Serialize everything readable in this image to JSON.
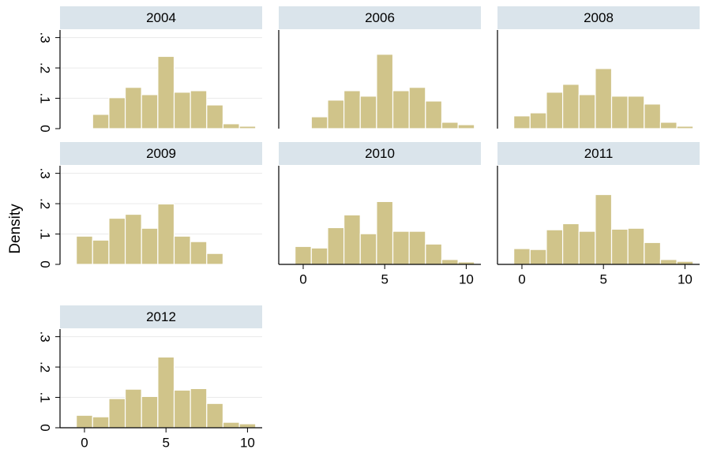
{
  "ylabel": "Density",
  "chart_data": [
    {
      "type": "histogram",
      "title": "2004",
      "bins": [
        -0.5,
        0.5,
        1.5,
        2.5,
        3.5,
        4.5,
        5.5,
        6.5,
        7.5,
        8.5,
        9.5,
        10.5
      ],
      "values": [
        0,
        0.047,
        0.102,
        0.136,
        0.112,
        0.238,
        0.12,
        0.125,
        0.078,
        0.016,
        0.008
      ],
      "color": "#d0c48a",
      "xlim": [
        -1.5,
        10.9
      ],
      "ylim": [
        0,
        0.325
      ],
      "yticks": [
        0,
        {
          "value": 0.1,
          "label": ".1"
        },
        {
          "value": 0.2,
          "label": ".2"
        },
        {
          "value": 0.3,
          "label": ".3"
        }
      ],
      "grid": true
    },
    {
      "type": "histogram",
      "title": "2006",
      "bins": [
        -0.5,
        0.5,
        1.5,
        2.5,
        3.5,
        4.5,
        5.5,
        6.5,
        7.5,
        8.5,
        9.5,
        10.5
      ],
      "values": [
        0,
        0.039,
        0.094,
        0.125,
        0.107,
        0.245,
        0.125,
        0.136,
        0.091,
        0.021,
        0.013
      ],
      "color": "#d0c48a",
      "xlim": [
        -1.5,
        10.9
      ],
      "ylim": [
        0,
        0.325
      ],
      "grid": true
    },
    {
      "type": "histogram",
      "title": "2008",
      "bins": [
        -0.5,
        0.5,
        1.5,
        2.5,
        3.5,
        4.5,
        5.5,
        6.5,
        7.5,
        8.5,
        9.5,
        10.5
      ],
      "values": [
        0.042,
        0.052,
        0.12,
        0.146,
        0.112,
        0.198,
        0.107,
        0.107,
        0.081,
        0.021,
        0.008
      ],
      "color": "#d0c48a",
      "xlim": [
        -1.5,
        10.9
      ],
      "ylim": [
        0,
        0.325
      ],
      "grid": true
    },
    {
      "type": "histogram",
      "title": "2009",
      "bins": [
        -0.5,
        0.5,
        1.5,
        2.5,
        3.5,
        4.5,
        5.5,
        6.5,
        7.5,
        8.5,
        9.5,
        10.5
      ],
      "values": [
        0.093,
        0.08,
        0.152,
        0.165,
        0.119,
        0.199,
        0.093,
        0.075,
        0.036,
        0.002,
        0.002
      ],
      "color": "#d0c48a",
      "xlim": [
        -1.5,
        10.9
      ],
      "ylim": [
        0,
        0.325
      ],
      "yticks": [
        0,
        {
          "value": 0.1,
          "label": ".1"
        },
        {
          "value": 0.2,
          "label": ".2"
        },
        {
          "value": 0.3,
          "label": ".3"
        }
      ],
      "grid": true
    },
    {
      "type": "histogram",
      "title": "2010",
      "bins": [
        -0.5,
        0.5,
        1.5,
        2.5,
        3.5,
        4.5,
        5.5,
        6.5,
        7.5,
        8.5,
        9.5,
        10.5
      ],
      "values": [
        0.059,
        0.054,
        0.121,
        0.163,
        0.101,
        0.207,
        0.109,
        0.109,
        0.067,
        0.016,
        0.008
      ],
      "color": "#d0c48a",
      "xlim": [
        -1.5,
        10.9
      ],
      "ylim": [
        0,
        0.325
      ],
      "xticks": [
        0,
        5,
        10
      ],
      "grid": true
    },
    {
      "type": "histogram",
      "title": "2011",
      "bins": [
        -0.5,
        0.5,
        1.5,
        2.5,
        3.5,
        4.5,
        5.5,
        6.5,
        7.5,
        8.5,
        9.5,
        10.5
      ],
      "values": [
        0.052,
        0.049,
        0.114,
        0.134,
        0.109,
        0.23,
        0.116,
        0.119,
        0.072,
        0.016,
        0.01
      ],
      "color": "#d0c48a",
      "xlim": [
        -1.5,
        10.9
      ],
      "ylim": [
        0,
        0.325
      ],
      "xticks": [
        0,
        5,
        10
      ],
      "grid": true
    },
    {
      "type": "histogram",
      "title": "2012",
      "bins": [
        -0.5,
        0.5,
        1.5,
        2.5,
        3.5,
        4.5,
        5.5,
        6.5,
        7.5,
        8.5,
        9.5,
        10.5
      ],
      "values": [
        0.041,
        0.036,
        0.096,
        0.127,
        0.103,
        0.233,
        0.124,
        0.129,
        0.08,
        0.018,
        0.013
      ],
      "color": "#d0c48a",
      "xlim": [
        -1.5,
        10.9
      ],
      "ylim": [
        0,
        0.325
      ],
      "yticks": [
        0,
        {
          "value": 0.1,
          "label": ".1"
        },
        {
          "value": 0.2,
          "label": ".2"
        },
        {
          "value": 0.3,
          "label": ".3"
        }
      ],
      "xticks": [
        0,
        5,
        10
      ],
      "grid": true
    }
  ]
}
